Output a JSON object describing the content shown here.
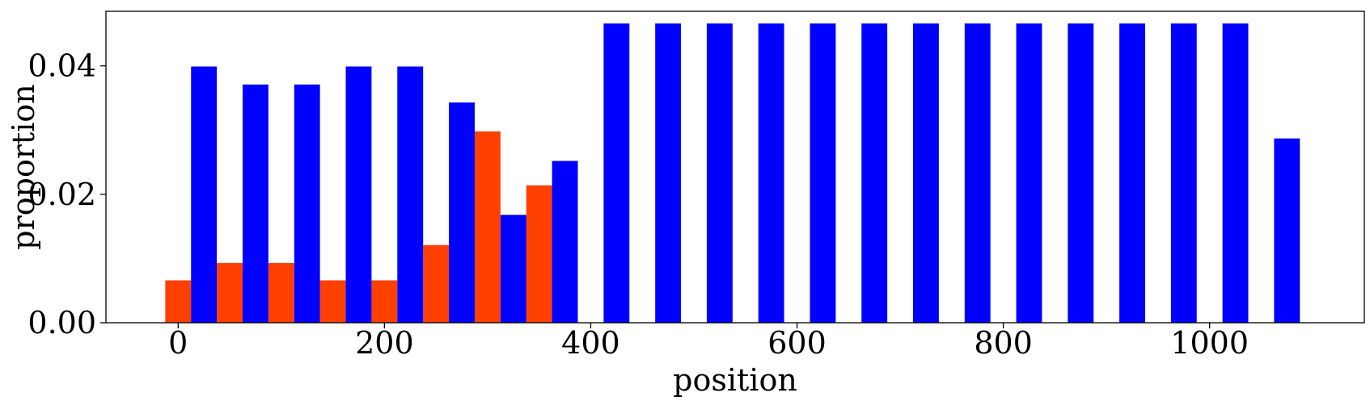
{
  "chart_data": {
    "type": "bar",
    "title": "",
    "xlabel": "position",
    "ylabel": "proportion",
    "xlim": [
      -70,
      1150
    ],
    "ylim": [
      0,
      0.0485
    ],
    "bar_width": 25,
    "grid": false,
    "xticks": [
      0,
      200,
      400,
      600,
      800,
      1000
    ],
    "xtick_labels": [
      "0",
      "200",
      "400",
      "600",
      "800",
      "1000"
    ],
    "yticks": [
      0,
      0.02,
      0.04
    ],
    "ytick_labels": [
      "0.00",
      "0.02",
      "0.04"
    ],
    "series": [
      {
        "color": "#ff4000",
        "points": [
          {
            "x": 0,
            "y": 0.0066
          },
          {
            "x": 50,
            "y": 0.0093
          },
          {
            "x": 100,
            "y": 0.0093
          },
          {
            "x": 150,
            "y": 0.0066
          },
          {
            "x": 200,
            "y": 0.0066
          },
          {
            "x": 250,
            "y": 0.0121
          },
          {
            "x": 300,
            "y": 0.0298
          },
          {
            "x": 350,
            "y": 0.0214
          }
        ]
      },
      {
        "color": "#0000ff",
        "points": [
          {
            "x": 25,
            "y": 0.0399
          },
          {
            "x": 75,
            "y": 0.0371
          },
          {
            "x": 125,
            "y": 0.0371
          },
          {
            "x": 175,
            "y": 0.0399
          },
          {
            "x": 225,
            "y": 0.0399
          },
          {
            "x": 275,
            "y": 0.0343
          },
          {
            "x": 325,
            "y": 0.0168
          },
          {
            "x": 375,
            "y": 0.0252
          },
          {
            "x": 425,
            "y": 0.0466
          },
          {
            "x": 475,
            "y": 0.0466
          },
          {
            "x": 525,
            "y": 0.0466
          },
          {
            "x": 575,
            "y": 0.0466
          },
          {
            "x": 625,
            "y": 0.0466
          },
          {
            "x": 675,
            "y": 0.0466
          },
          {
            "x": 725,
            "y": 0.0466
          },
          {
            "x": 775,
            "y": 0.0466
          },
          {
            "x": 825,
            "y": 0.0466
          },
          {
            "x": 875,
            "y": 0.0466
          },
          {
            "x": 925,
            "y": 0.0466
          },
          {
            "x": 975,
            "y": 0.0466
          },
          {
            "x": 1025,
            "y": 0.0466
          },
          {
            "x": 1075,
            "y": 0.0287
          }
        ]
      }
    ]
  }
}
